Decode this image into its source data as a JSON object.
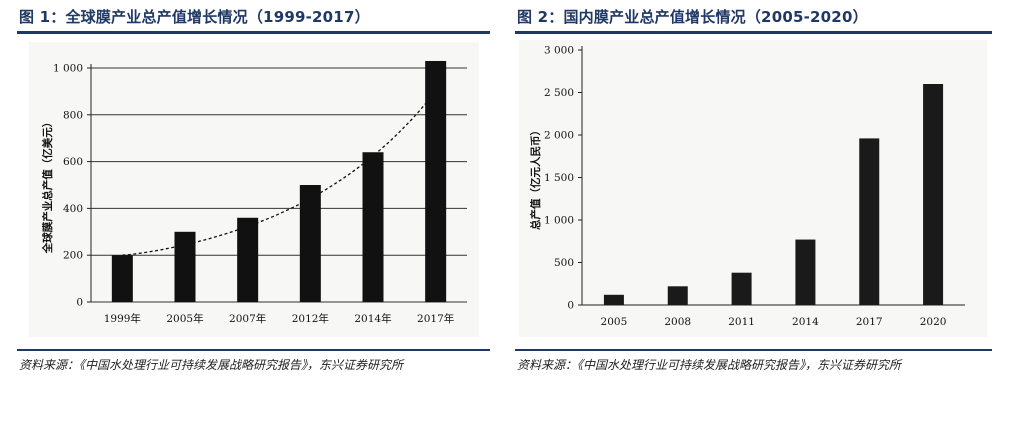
{
  "figures": [
    {
      "title": "图 1：全球膜产业总产值增长情况（1999-2017）",
      "source": "资料来源：《中国水处理行业可持续发展战略研究报告》，东兴证券研究所"
    },
    {
      "title": "图 2：国内膜产业总产值增长情况（2005-2020）",
      "source": "资料来源：《中国水处理行业可持续发展战略研究报告》，东兴证券研究所"
    }
  ],
  "chart_data": [
    {
      "type": "bar",
      "title": "图 1：全球膜产业总产值增长情况（1999-2017）",
      "categories": [
        "1999年",
        "2005年",
        "2007年",
        "2012年",
        "2014年",
        "2017年"
      ],
      "values": [
        200,
        300,
        360,
        500,
        640,
        1030
      ],
      "ylabel": "全球膜产业总产值（亿美元）",
      "xlabel": "",
      "ylim": [
        0,
        1000
      ],
      "yticks": [
        0,
        200,
        400,
        600,
        800,
        1000
      ],
      "ytick_labels": [
        "0",
        "200",
        "400",
        "600",
        "800",
        "1 000"
      ],
      "trendline": "dashed-curve",
      "grid": true,
      "bar_color": "#111111"
    },
    {
      "type": "bar",
      "title": "图 2：国内膜产业总产值增长情况（2005-2020）",
      "categories": [
        "2005",
        "2008",
        "2011",
        "2014",
        "2017",
        "2020"
      ],
      "values": [
        120,
        220,
        380,
        770,
        1960,
        2600
      ],
      "ylabel": "总产值（亿元人民币）",
      "xlabel": "",
      "ylim": [
        0,
        3000
      ],
      "yticks": [
        0,
        500,
        1000,
        1500,
        2000,
        2500,
        3000
      ],
      "ytick_labels": [
        "0",
        "500",
        "1 000",
        "1 500",
        "2 000",
        "2 500",
        "3 000"
      ],
      "grid": false,
      "bar_color": "#1a1a1a"
    }
  ]
}
